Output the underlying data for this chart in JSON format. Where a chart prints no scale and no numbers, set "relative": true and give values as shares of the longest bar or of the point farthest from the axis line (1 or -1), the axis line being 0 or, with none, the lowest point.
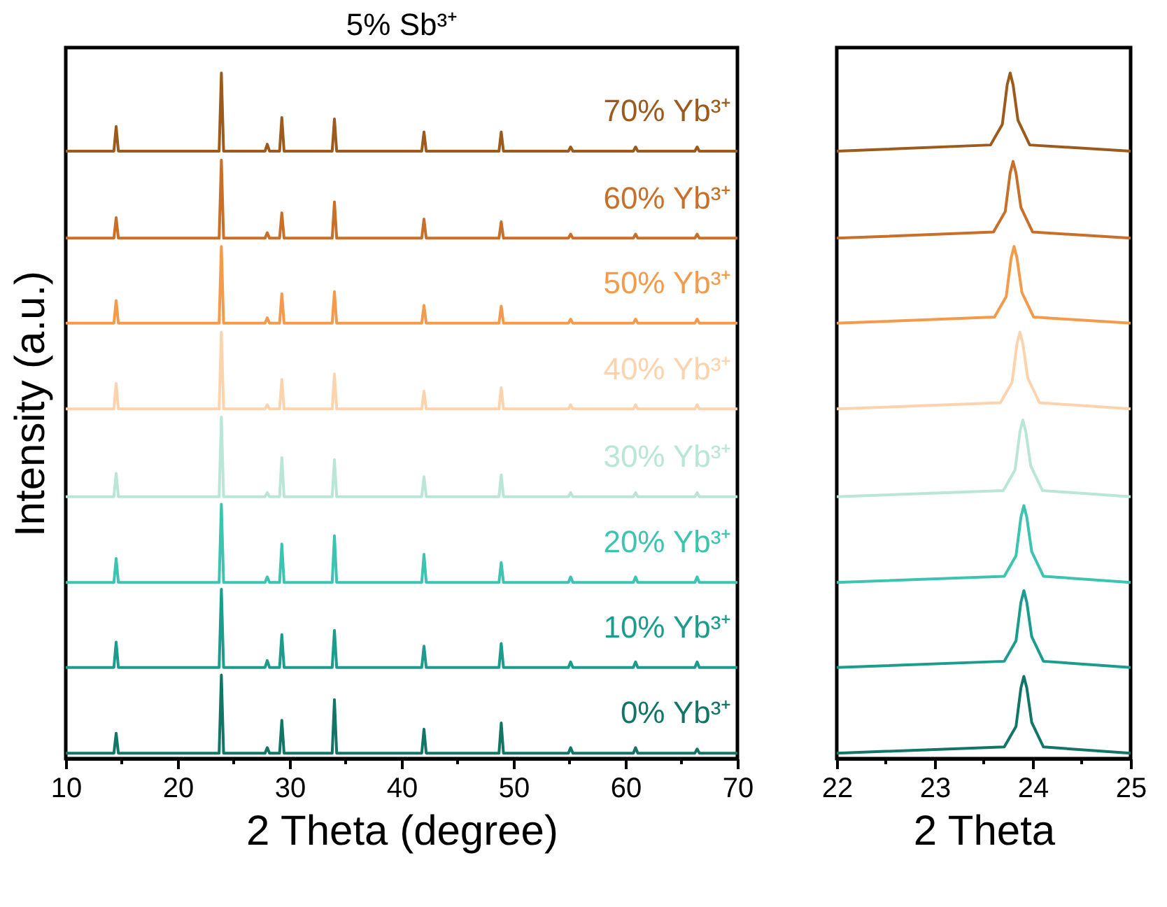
{
  "chart_data": [
    {
      "type": "line",
      "relative": true,
      "title": "5% Sb³⁺",
      "xlabel": "2 Theta (degree)",
      "ylabel": "Intensity (a.u.)",
      "xlim": [
        10,
        70
      ],
      "xticks": [
        10,
        {
          "value": 15,
          "label": null
        },
        20,
        {
          "value": 25,
          "label": null
        },
        30,
        {
          "value": 35,
          "label": null
        },
        40,
        {
          "value": 45,
          "label": null
        },
        50,
        {
          "value": 55,
          "label": null
        },
        60,
        {
          "value": 65,
          "label": null
        },
        70
      ],
      "grid": false,
      "legend": false,
      "line_style": "solid",
      "marker": "none",
      "x": [
        10,
        14.3,
        14.5,
        14.7,
        23.7,
        23.9,
        24.1,
        27.8,
        28.0,
        28.2,
        29.1,
        29.3,
        29.5,
        33.8,
        34.0,
        34.2,
        41.8,
        42.0,
        42.2,
        48.7,
        48.9,
        49.1,
        54.9,
        55.1,
        55.3,
        60.7,
        60.9,
        61.1,
        66.2,
        66.4,
        66.6,
        70
      ],
      "series": [
        {
          "name": "70% Yb³⁺",
          "color": "#9c5a1c",
          "values": [
            0.886,
            0.886,
            0.922,
            0.886,
            0.886,
            1.0,
            0.886,
            0.886,
            0.896,
            0.886,
            0.886,
            0.935,
            0.886,
            0.886,
            0.933,
            0.886,
            0.886,
            0.914,
            0.886,
            0.886,
            0.914,
            0.886,
            0.886,
            0.892,
            0.886,
            0.886,
            0.892,
            0.886,
            0.886,
            0.892,
            0.886,
            0.886
          ]
        },
        {
          "name": "60% Yb³⁺",
          "color": "#c8702a",
          "values": [
            0.759,
            0.759,
            0.789,
            0.759,
            0.759,
            0.873,
            0.759,
            0.759,
            0.767,
            0.759,
            0.759,
            0.796,
            0.759,
            0.759,
            0.812,
            0.759,
            0.759,
            0.787,
            0.759,
            0.759,
            0.783,
            0.759,
            0.759,
            0.765,
            0.759,
            0.759,
            0.765,
            0.759,
            0.759,
            0.765,
            0.759,
            0.759
          ]
        },
        {
          "name": "50% Yb³⁺",
          "color": "#f39a4b",
          "values": [
            0.635,
            0.635,
            0.668,
            0.635,
            0.635,
            0.747,
            0.635,
            0.635,
            0.643,
            0.635,
            0.635,
            0.678,
            0.635,
            0.635,
            0.681,
            0.635,
            0.635,
            0.661,
            0.635,
            0.635,
            0.66,
            0.635,
            0.635,
            0.641,
            0.635,
            0.635,
            0.641,
            0.635,
            0.635,
            0.641,
            0.635,
            0.635
          ]
        },
        {
          "name": "40% Yb³⁺",
          "color": "#fcd3ac",
          "values": [
            0.51,
            0.51,
            0.547,
            0.51,
            0.51,
            0.622,
            0.51,
            0.51,
            0.516,
            0.51,
            0.51,
            0.553,
            0.51,
            0.51,
            0.561,
            0.51,
            0.51,
            0.536,
            0.51,
            0.51,
            0.541,
            0.51,
            0.51,
            0.516,
            0.51,
            0.51,
            0.516,
            0.51,
            0.51,
            0.516,
            0.51,
            0.51
          ]
        },
        {
          "name": "30% Yb³⁺",
          "color": "#b9e6d6",
          "values": [
            0.382,
            0.382,
            0.416,
            0.382,
            0.382,
            0.498,
            0.382,
            0.382,
            0.388,
            0.382,
            0.382,
            0.439,
            0.382,
            0.382,
            0.436,
            0.382,
            0.382,
            0.411,
            0.382,
            0.382,
            0.414,
            0.382,
            0.382,
            0.388,
            0.382,
            0.382,
            0.388,
            0.382,
            0.382,
            0.388,
            0.382,
            0.382
          ]
        },
        {
          "name": "20% Yb³⁺",
          "color": "#3cc4b0",
          "values": [
            0.257,
            0.257,
            0.292,
            0.257,
            0.257,
            0.371,
            0.257,
            0.257,
            0.265,
            0.257,
            0.257,
            0.313,
            0.257,
            0.257,
            0.325,
            0.257,
            0.257,
            0.298,
            0.257,
            0.257,
            0.286,
            0.257,
            0.257,
            0.265,
            0.257,
            0.257,
            0.265,
            0.257,
            0.257,
            0.265,
            0.257,
            0.257
          ]
        },
        {
          "name": "10% Yb³⁺",
          "color": "#1c9c8c",
          "values": [
            0.133,
            0.133,
            0.17,
            0.133,
            0.133,
            0.247,
            0.133,
            0.133,
            0.143,
            0.133,
            0.133,
            0.181,
            0.133,
            0.133,
            0.187,
            0.133,
            0.133,
            0.164,
            0.133,
            0.133,
            0.168,
            0.133,
            0.133,
            0.141,
            0.133,
            0.133,
            0.141,
            0.133,
            0.133,
            0.141,
            0.133,
            0.133
          ]
        },
        {
          "name": "0% Yb³⁺",
          "color": "#137566",
          "values": [
            0.008,
            0.008,
            0.037,
            0.008,
            0.008,
            0.122,
            0.008,
            0.008,
            0.016,
            0.008,
            0.008,
            0.056,
            0.008,
            0.008,
            0.086,
            0.008,
            0.008,
            0.043,
            0.008,
            0.008,
            0.052,
            0.008,
            0.008,
            0.016,
            0.008,
            0.008,
            0.016,
            0.008,
            0.008,
            0.014,
            0.008,
            0.008
          ]
        }
      ]
    },
    {
      "type": "line",
      "relative": true,
      "xlabel": "2 Theta",
      "xlim": [
        22,
        25
      ],
      "xticks": [
        22,
        {
          "value": 22.5,
          "label": null
        },
        23,
        {
          "value": 23.5,
          "label": null
        },
        24,
        {
          "value": 24.5,
          "label": null
        },
        25
      ],
      "grid": false,
      "legend": false,
      "line_style": "solid",
      "marker": "none",
      "series": [
        {
          "color": "#9c5a1c",
          "x": [
            22,
            23.57,
            23.69,
            23.74,
            23.77,
            23.8,
            23.85,
            23.97,
            25
          ],
          "values": [
            0.886,
            0.895,
            0.925,
            0.983,
            1.0,
            0.983,
            0.931,
            0.895,
            0.886
          ]
        },
        {
          "color": "#c8702a",
          "x": [
            22,
            23.6,
            23.72,
            23.77,
            23.8,
            23.83,
            23.88,
            24.0,
            25
          ],
          "values": [
            0.759,
            0.768,
            0.798,
            0.854,
            0.871,
            0.854,
            0.804,
            0.768,
            0.759
          ]
        },
        {
          "color": "#f39a4b",
          "x": [
            22,
            23.61,
            23.73,
            23.78,
            23.81,
            23.84,
            23.89,
            24.01,
            25
          ],
          "values": [
            0.635,
            0.644,
            0.674,
            0.73,
            0.747,
            0.73,
            0.68,
            0.644,
            0.635
          ]
        },
        {
          "color": "#fcd3ac",
          "x": [
            22,
            23.67,
            23.79,
            23.84,
            23.87,
            23.9,
            23.95,
            24.07,
            25
          ],
          "values": [
            0.51,
            0.519,
            0.549,
            0.605,
            0.622,
            0.605,
            0.555,
            0.519,
            0.51
          ]
        },
        {
          "color": "#b9e6d6",
          "x": [
            22,
            23.7,
            23.82,
            23.87,
            23.9,
            23.93,
            23.98,
            24.1,
            25
          ],
          "values": [
            0.382,
            0.391,
            0.421,
            0.477,
            0.494,
            0.477,
            0.427,
            0.391,
            0.382
          ]
        },
        {
          "color": "#3cc4b0",
          "x": [
            22,
            23.71,
            23.83,
            23.88,
            23.91,
            23.94,
            23.99,
            24.11,
            25
          ],
          "values": [
            0.257,
            0.266,
            0.296,
            0.352,
            0.369,
            0.352,
            0.302,
            0.266,
            0.257
          ]
        },
        {
          "color": "#1c9c8c",
          "x": [
            22,
            23.71,
            23.83,
            23.88,
            23.91,
            23.94,
            23.99,
            24.11,
            25
          ],
          "values": [
            0.133,
            0.142,
            0.172,
            0.228,
            0.245,
            0.228,
            0.178,
            0.142,
            0.133
          ]
        },
        {
          "color": "#137566",
          "x": [
            22,
            23.71,
            23.83,
            23.88,
            23.91,
            23.94,
            23.99,
            24.11,
            25
          ],
          "values": [
            0.008,
            0.017,
            0.047,
            0.103,
            0.12,
            0.103,
            0.053,
            0.017,
            0.008
          ]
        }
      ]
    }
  ]
}
